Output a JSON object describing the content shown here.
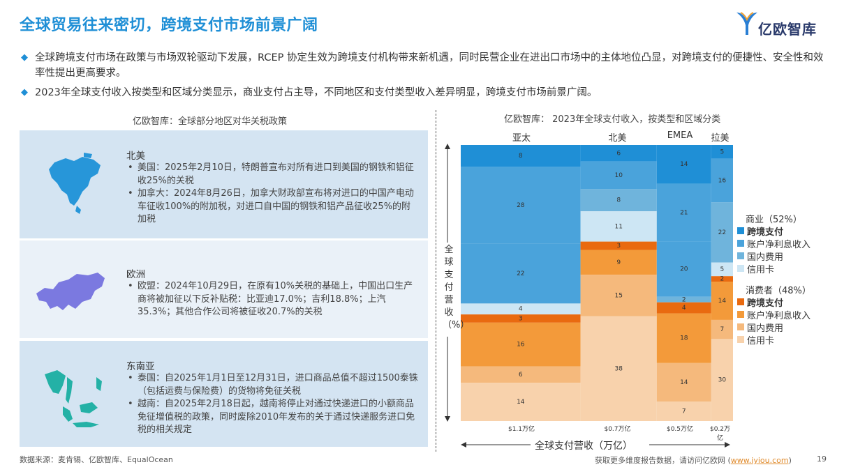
{
  "header": {
    "title": "全球贸易往来密切，跨境支付市场前景广阔",
    "logo_text": "亿欧智库"
  },
  "bullets": [
    "全球跨境支付市场在政策与市场双轮驱动下发展，RCEP 协定生效为跨境支付机构带来新机遇，同时民营企业在进出口市场中的主体地位凸显，对跨境支付的便捷性、安全性和效率性提出更高要求。",
    "2023年全球支付收入按类型和区域分类显示，商业支付占主导，不同地区和支付类型收入差异明显，跨境支付市场前景广阔。"
  ],
  "left_panel": {
    "caption": "亿欧智库：全球部分地区对华关税政策",
    "regions": [
      {
        "name": "北美",
        "items": [
          "美国：2025年2月10日，特朗普宣布对所有进口到美国的钢铁和铝征收25%的关税",
          "加拿大：2024年8月26日，加拿大财政部宣布将对进口的中国产电动车征收100%的附加税，对进口自中国的钢铁和铝产品征收25%的附加税"
        ]
      },
      {
        "name": "欧洲",
        "items": [
          "欧盟：2024年10月29日，在原有10%关税的基础上，中国出口生产商将被加征以下反补贴税：比亚迪17.0%；吉利18.8%；上汽35.3%；其他合作公司将被征收20.7%的关税"
        ]
      },
      {
        "name": "东南亚",
        "items": [
          "泰国：自2025年1月1日至12月31日，进口商品总值不超过1500泰铢（包括运费与保险费）的货物将免征关税",
          "越南：自2025年2月18日起，越南将停止对通过快递进口的小额商品免征增值税的政策，同时废除2010年发布的关于通过快递服务进口免税的相关规定"
        ]
      }
    ]
  },
  "chart_data": {
    "type": "bar",
    "subtype": "marimekko",
    "title": "亿欧智库：  2023年全球支付收入，按类型和区域分类",
    "ylabel": "全球支付营收（%）",
    "xlabel": "全球支付营收（万亿）",
    "categories": [
      "亚太",
      "北美",
      "EMEA",
      "拉美"
    ],
    "totals": [
      "$1.1万亿",
      "$0.7万亿",
      "$0.5万亿",
      "$0.2万亿"
    ],
    "total_values": [
      1.1,
      0.7,
      0.5,
      0.2
    ],
    "series": [
      {
        "group": "商业",
        "name": "跨境支付",
        "color": "#1f8fd6",
        "values": [
          8,
          6,
          14,
          5
        ]
      },
      {
        "group": "商业",
        "name": "账户净利息收入",
        "color": "#4aa3db",
        "values": [
          28,
          10,
          21,
          16
        ]
      },
      {
        "group": "商业",
        "name": "国内费用",
        "color": "#6fb4dc",
        "values": [
          null,
          8,
          null,
          22
        ]
      },
      {
        "group": "商业",
        "name": "信用卡",
        "color": "#cde6f4",
        "values": [
          null,
          11,
          null,
          5
        ]
      },
      {
        "group": "商业",
        "name": "账户净利息收入",
        "color": "#4aa3db",
        "values": [
          22,
          null,
          20,
          null
        ]
      },
      {
        "group": "商业",
        "name": "国内费用",
        "color": "#6fb4dc",
        "values": [
          null,
          null,
          2,
          null
        ]
      },
      {
        "group": "商业",
        "name": "信用卡",
        "color": "#cde6f4",
        "values": [
          4,
          null,
          null,
          null
        ]
      },
      {
        "group": "消费者",
        "name": "跨境支付",
        "color": "#e96a10",
        "values": [
          3,
          3,
          4,
          2
        ]
      },
      {
        "group": "消费者",
        "name": "账户净利息收入",
        "color": "#f39a3a",
        "values": [
          16,
          9,
          18,
          14
        ]
      },
      {
        "group": "消费者",
        "name": "国内费用",
        "color": "#f5b97c",
        "values": [
          6,
          15,
          14,
          7
        ]
      },
      {
        "group": "消费者",
        "name": "信用卡",
        "color": "#f8d2ac",
        "values": [
          14,
          38,
          7,
          30
        ]
      }
    ],
    "legend": {
      "commercial_title": "商业（52%）",
      "consumer_title": "消费者（48%）",
      "commercial": [
        {
          "label": "跨境支付",
          "color": "#1f8fd6",
          "bold": true
        },
        {
          "label": "账户净利息收入",
          "color": "#4aa3db",
          "bold": false
        },
        {
          "label": "国内费用",
          "color": "#6fb4dc",
          "bold": false
        },
        {
          "label": "信用卡",
          "color": "#cde6f4",
          "bold": false
        }
      ],
      "consumer": [
        {
          "label": "跨境支付",
          "color": "#e96a10",
          "bold": true
        },
        {
          "label": "账户净利息收入",
          "color": "#f39a3a",
          "bold": false
        },
        {
          "label": "国内费用",
          "color": "#f5b97c",
          "bold": false
        },
        {
          "label": "信用卡",
          "color": "#f8d2ac",
          "bold": false
        }
      ]
    }
  },
  "footer": {
    "source": "数据来源：麦肯锡、亿欧智库、EqualOcean",
    "more_info": "获取更多维度报告数据，请访问亿欧网 (",
    "link": "www.iyiou.com",
    "close_paren": ")",
    "page": "19"
  }
}
